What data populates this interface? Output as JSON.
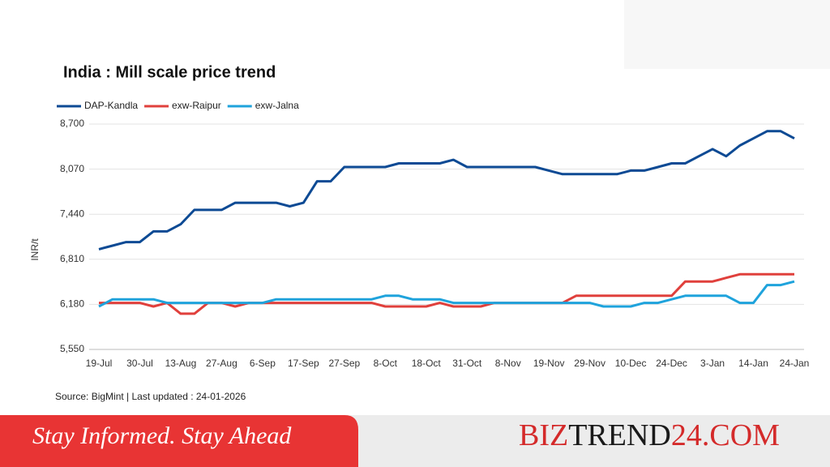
{
  "chart_data": {
    "type": "line",
    "title": "India : Mill scale price trend",
    "y_label": "INR/t",
    "source": "Source: BigMint | Last updated : 24-01-2026",
    "categories": [
      "19-Jul",
      null,
      null,
      "30-Jul",
      null,
      null,
      "13-Aug",
      null,
      null,
      "27-Aug",
      null,
      null,
      "6-Sep",
      null,
      null,
      "17-Sep",
      null,
      null,
      "27-Sep",
      null,
      null,
      "8-Oct",
      null,
      null,
      "18-Oct",
      null,
      null,
      "31-Oct",
      null,
      null,
      "8-Nov",
      null,
      null,
      "19-Nov",
      null,
      null,
      "29-Nov",
      null,
      null,
      "10-Dec",
      null,
      null,
      "24-Dec",
      null,
      null,
      "3-Jan",
      null,
      null,
      "14-Jan",
      null,
      null,
      "24-Jan"
    ],
    "series": [
      {
        "name": "DAP-Kandla",
        "color": "#0d4a94",
        "values": [
          6950,
          7000,
          7050,
          7050,
          7200,
          7200,
          7300,
          7500,
          7500,
          7500,
          7600,
          7600,
          7600,
          7600,
          7550,
          7600,
          7900,
          7900,
          8100,
          8100,
          8100,
          8100,
          8150,
          8150,
          8150,
          8150,
          8200,
          8100,
          8100,
          8100,
          8100,
          8100,
          8100,
          8050,
          8000,
          8000,
          8000,
          8000,
          8000,
          8050,
          8050,
          8100,
          8150,
          8150,
          8250,
          8350,
          8250,
          8400,
          8500,
          8600,
          8600,
          8500
        ]
      },
      {
        "name": "exw-Raipur",
        "color": "#e0403c",
        "values": [
          6200,
          6200,
          6200,
          6200,
          6150,
          6200,
          6050,
          6050,
          6200,
          6200,
          6150,
          6200,
          6200,
          6200,
          6200,
          6200,
          6200,
          6200,
          6200,
          6200,
          6200,
          6150,
          6150,
          6150,
          6150,
          6200,
          6150,
          6150,
          6150,
          6200,
          6200,
          6200,
          6200,
          6200,
          6200,
          6300,
          6300,
          6300,
          6300,
          6300,
          6300,
          6300,
          6300,
          6500,
          6500,
          6500,
          6550,
          6600,
          6600,
          6600,
          6600,
          6600
        ]
      },
      {
        "name": "exw-Jalna",
        "color": "#1fa3dc",
        "values": [
          6150,
          6250,
          6250,
          6250,
          6250,
          6200,
          6200,
          6200,
          6200,
          6200,
          6200,
          6200,
          6200,
          6250,
          6250,
          6250,
          6250,
          6250,
          6250,
          6250,
          6250,
          6300,
          6300,
          6250,
          6250,
          6250,
          6200,
          6200,
          6200,
          6200,
          6200,
          6200,
          6200,
          6200,
          6200,
          6200,
          6200,
          6150,
          6150,
          6150,
          6200,
          6200,
          6250,
          6300,
          6300,
          6300,
          6300,
          6200,
          6200,
          6450,
          6450,
          6500
        ]
      }
    ],
    "ylim": [
      5550,
      8700
    ],
    "yticks": [
      {
        "value": 5550,
        "label": "5,550"
      },
      {
        "value": 6180,
        "label": "6,180"
      },
      {
        "value": 6810,
        "label": "6,810"
      },
      {
        "value": 7440,
        "label": "7,440"
      },
      {
        "value": 8070,
        "label": "8,070"
      },
      {
        "value": 8700,
        "label": "8,700"
      }
    ],
    "grid": true,
    "legend": "top"
  },
  "banner": {
    "tagline": "Stay Informed. Stay Ahead",
    "brand": [
      "BIZ",
      "TREND",
      "24.COM"
    ]
  }
}
